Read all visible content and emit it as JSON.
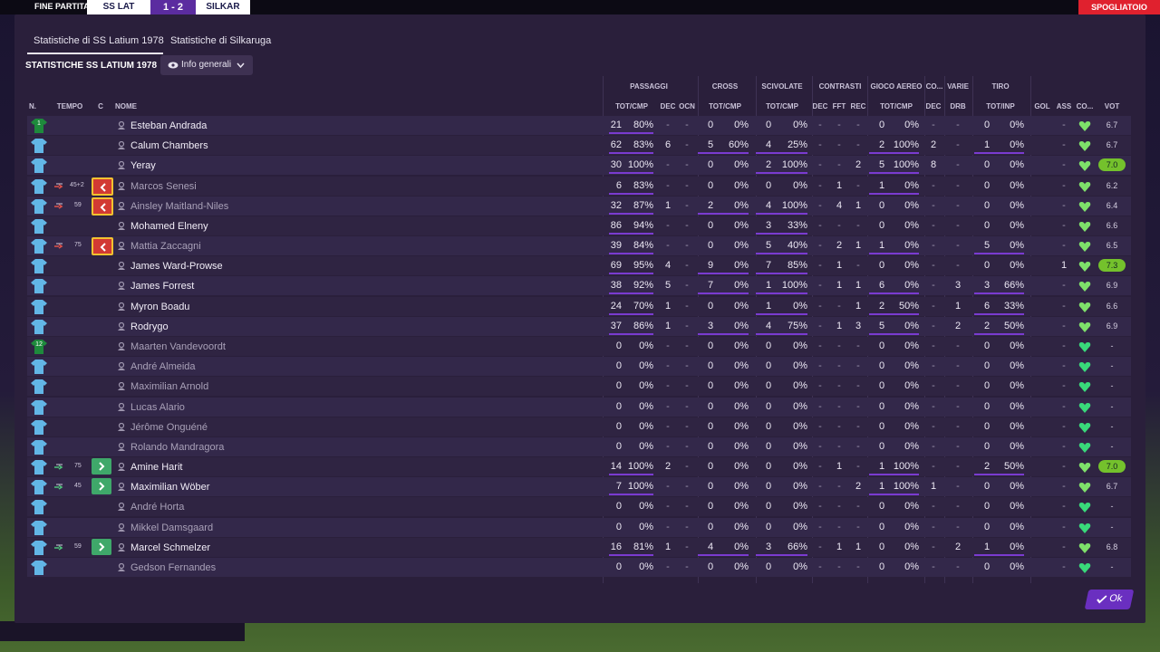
{
  "scoreboard": {
    "status": "FINE PARTITA",
    "home": "SS LAT",
    "score": "1 - 2",
    "away": "SILKAR",
    "button": "SPOGLIATOIO"
  },
  "tabs": [
    "Statistiche di SS Latium 1978",
    "Statistiche di Silkaruga"
  ],
  "section_title": "STATISTICHE SS LATIUM 1978",
  "dropdown": "Info generali",
  "groups": [
    "PASSAGGI",
    "CROSS",
    "SCIVOLATE",
    "CONTRASTI",
    "GIOCO AEREO",
    "CO...",
    "VARIE",
    "TIRO"
  ],
  "headers": [
    "N.",
    "TEMPO",
    "C",
    "NOME",
    "TOT/CMP",
    "DEC",
    "OCN",
    "TOT/CMP",
    "TOT/CMP",
    "DEC",
    "FFT",
    "REC",
    "TOT/CMP",
    "DEC",
    "DRB",
    "TOT/INP",
    "GOL",
    "ASS",
    "CO...",
    "VOT"
  ],
  "rows": [
    {
      "n": "1",
      "tempo": null,
      "name": "Esteban Andrada",
      "stats": [
        "21",
        "80%",
        "-",
        "-",
        "0",
        "0%",
        "0",
        "0%",
        "-",
        "-",
        "-",
        "0",
        "0%",
        "-",
        "-",
        "0",
        "0%",
        "-"
      ],
      "vot": "6.7"
    },
    {
      "n": null,
      "tempo": null,
      "name": "Calum Chambers",
      "stats": [
        "62",
        "83%",
        "6",
        "-",
        "5",
        "60%",
        "4",
        "25%",
        "-",
        "-",
        "-",
        "2",
        "100%",
        "2",
        "-",
        "1",
        "0%",
        "-"
      ],
      "vot": "6.7"
    },
    {
      "n": null,
      "tempo": null,
      "name": "Yeray",
      "stats": [
        "30",
        "100%",
        "-",
        "-",
        "0",
        "0%",
        "2",
        "100%",
        "-",
        "-",
        "2",
        "5",
        "100%",
        "8",
        "-",
        "0",
        "0%",
        "-"
      ],
      "vot": "7.0"
    },
    {
      "n": null,
      "tempo": "45+2",
      "name": "Marcos Senesi",
      "stats": [
        "6",
        "83%",
        "-",
        "-",
        "0",
        "0%",
        "0",
        "0%",
        "-",
        "1",
        "-",
        "1",
        "0%",
        "-",
        "-",
        "0",
        "0%",
        "-"
      ],
      "vot": "6.2"
    },
    {
      "n": null,
      "tempo": "59",
      "name": "Ainsley Maitland-Niles",
      "stats": [
        "32",
        "87%",
        "1",
        "-",
        "2",
        "0%",
        "4",
        "100%",
        "-",
        "4",
        "1",
        "0",
        "0%",
        "-",
        "-",
        "0",
        "0%",
        "-"
      ],
      "vot": "6.4"
    },
    {
      "n": null,
      "tempo": null,
      "name": "Mohamed Elneny",
      "stats": [
        "86",
        "94%",
        "-",
        "-",
        "0",
        "0%",
        "3",
        "33%",
        "-",
        "-",
        "-",
        "0",
        "0%",
        "-",
        "-",
        "0",
        "0%",
        "-"
      ],
      "vot": "6.6"
    },
    {
      "n": null,
      "tempo": "75",
      "name": "Mattia Zaccagni",
      "stats": [
        "39",
        "84%",
        "-",
        "-",
        "0",
        "0%",
        "5",
        "40%",
        "-",
        "2",
        "1",
        "1",
        "0%",
        "-",
        "-",
        "5",
        "0%",
        "-"
      ],
      "vot": "6.5"
    },
    {
      "n": null,
      "tempo": null,
      "name": "James Ward-Prowse",
      "stats": [
        "69",
        "95%",
        "4",
        "-",
        "9",
        "0%",
        "7",
        "85%",
        "-",
        "1",
        "-",
        "0",
        "0%",
        "-",
        "-",
        "0",
        "0%",
        "1"
      ],
      "vot": "7.3"
    },
    {
      "n": null,
      "tempo": null,
      "name": "James Forrest",
      "stats": [
        "38",
        "92%",
        "5",
        "-",
        "7",
        "0%",
        "1",
        "100%",
        "-",
        "1",
        "1",
        "6",
        "0%",
        "-",
        "3",
        "3",
        "66%",
        "-"
      ],
      "vot": "6.9"
    },
    {
      "n": null,
      "tempo": null,
      "name": "Myron Boadu",
      "stats": [
        "24",
        "70%",
        "1",
        "-",
        "0",
        "0%",
        "1",
        "0%",
        "-",
        "-",
        "1",
        "2",
        "50%",
        "-",
        "1",
        "6",
        "33%",
        "-"
      ],
      "vot": "6.6"
    },
    {
      "n": null,
      "tempo": null,
      "name": "Rodrygo",
      "stats": [
        "37",
        "86%",
        "1",
        "-",
        "3",
        "0%",
        "4",
        "75%",
        "-",
        "1",
        "3",
        "5",
        "0%",
        "-",
        "2",
        "2",
        "50%",
        "-"
      ],
      "vot": "6.9"
    },
    {
      "n": "12",
      "tempo": null,
      "name": "Maarten Vandevoordt",
      "stats": [
        "0",
        "0%",
        "-",
        "-",
        "0",
        "0%",
        "0",
        "0%",
        "-",
        "-",
        "-",
        "0",
        "0%",
        "-",
        "-",
        "0",
        "0%",
        "-"
      ],
      "vot": "-"
    },
    {
      "n": null,
      "tempo": null,
      "name": "André Almeida",
      "stats": [
        "0",
        "0%",
        "-",
        "-",
        "0",
        "0%",
        "0",
        "0%",
        "-",
        "-",
        "-",
        "0",
        "0%",
        "-",
        "-",
        "0",
        "0%",
        "-"
      ],
      "vot": "-"
    },
    {
      "n": null,
      "tempo": null,
      "name": "Maximilian Arnold",
      "stats": [
        "0",
        "0%",
        "-",
        "-",
        "0",
        "0%",
        "0",
        "0%",
        "-",
        "-",
        "-",
        "0",
        "0%",
        "-",
        "-",
        "0",
        "0%",
        "-"
      ],
      "vot": "-"
    },
    {
      "n": null,
      "tempo": null,
      "name": "Lucas Alario",
      "stats": [
        "0",
        "0%",
        "-",
        "-",
        "0",
        "0%",
        "0",
        "0%",
        "-",
        "-",
        "-",
        "0",
        "0%",
        "-",
        "-",
        "0",
        "0%",
        "-"
      ],
      "vot": "-"
    },
    {
      "n": null,
      "tempo": null,
      "name": "Jérôme Onguéné",
      "stats": [
        "0",
        "0%",
        "-",
        "-",
        "0",
        "0%",
        "0",
        "0%",
        "-",
        "-",
        "-",
        "0",
        "0%",
        "-",
        "-",
        "0",
        "0%",
        "-"
      ],
      "vot": "-"
    },
    {
      "n": null,
      "tempo": null,
      "name": "Rolando Mandragora",
      "stats": [
        "0",
        "0%",
        "-",
        "-",
        "0",
        "0%",
        "0",
        "0%",
        "-",
        "-",
        "-",
        "0",
        "0%",
        "-",
        "-",
        "0",
        "0%",
        "-"
      ],
      "vot": "-"
    },
    {
      "n": null,
      "tempo": "75",
      "name": "Amine Harit",
      "stats": [
        "14",
        "100%",
        "2",
        "-",
        "0",
        "0%",
        "0",
        "0%",
        "-",
        "1",
        "-",
        "1",
        "100%",
        "-",
        "-",
        "2",
        "50%",
        "-"
      ],
      "vot": "7.0"
    },
    {
      "n": null,
      "tempo": "45",
      "name": "Maximilian Wöber",
      "stats": [
        "7",
        "100%",
        "-",
        "-",
        "0",
        "0%",
        "0",
        "0%",
        "-",
        "-",
        "2",
        "1",
        "100%",
        "1",
        "-",
        "0",
        "0%",
        "-"
      ],
      "vot": "6.7"
    },
    {
      "n": null,
      "tempo": null,
      "name": "André Horta",
      "stats": [
        "0",
        "0%",
        "-",
        "-",
        "0",
        "0%",
        "0",
        "0%",
        "-",
        "-",
        "-",
        "0",
        "0%",
        "-",
        "-",
        "0",
        "0%",
        "-"
      ],
      "vot": "-"
    },
    {
      "n": null,
      "tempo": null,
      "name": "Mikkel Damsgaard",
      "stats": [
        "0",
        "0%",
        "-",
        "-",
        "0",
        "0%",
        "0",
        "0%",
        "-",
        "-",
        "-",
        "0",
        "0%",
        "-",
        "-",
        "0",
        "0%",
        "-"
      ],
      "vot": "-"
    },
    {
      "n": null,
      "tempo": "59",
      "name": "Marcel Schmelzer",
      "stats": [
        "16",
        "81%",
        "1",
        "-",
        "4",
        "0%",
        "3",
        "66%",
        "-",
        "1",
        "1",
        "0",
        "0%",
        "-",
        "2",
        "1",
        "0%",
        "-"
      ],
      "vot": "6.8"
    },
    {
      "n": null,
      "tempo": null,
      "name": "Gedson Fernandes",
      "stats": [
        "0",
        "0%",
        "-",
        "-",
        "0",
        "0%",
        "0",
        "0%",
        "-",
        "-",
        "-",
        "0",
        "0%",
        "-",
        "-",
        "0",
        "0%",
        "-"
      ],
      "vot": "-"
    }
  ],
  "ok_button": "Ok"
}
